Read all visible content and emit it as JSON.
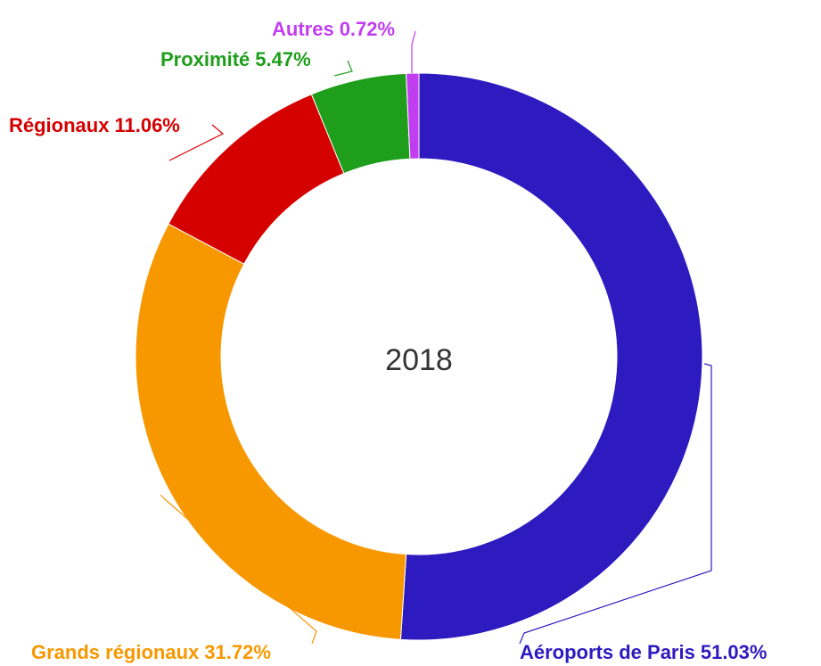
{
  "chart_data": {
    "type": "donut",
    "title": "2018",
    "categories": [
      "Aéroports de Paris",
      "Grands régionaux",
      "Régionaux",
      "Proximité",
      "Autres"
    ],
    "values": [
      51.03,
      31.72,
      11.06,
      5.47,
      0.72
    ],
    "value_labels": [
      "51.03%",
      "31.72%",
      "11.06%",
      "5.47%",
      "0.72%"
    ],
    "colors": [
      "#2e1bbf",
      "#f79800",
      "#d50000",
      "#1e9e1a",
      "#c13ef0"
    ]
  }
}
